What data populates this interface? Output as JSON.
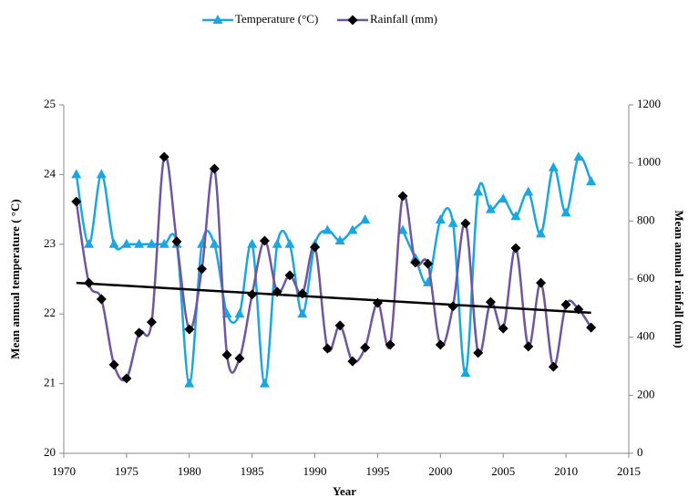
{
  "chart_data": {
    "type": "line",
    "x": [
      1971,
      1972,
      1973,
      1974,
      1975,
      1976,
      1977,
      1978,
      1979,
      1980,
      1981,
      1982,
      1983,
      1984,
      1985,
      1986,
      1987,
      1988,
      1989,
      1990,
      1991,
      1992,
      1993,
      1994,
      1995,
      1996,
      1997,
      1998,
      1999,
      2000,
      2001,
      2002,
      2003,
      2004,
      2005,
      2006,
      2007,
      2008,
      2009,
      2010,
      2011,
      2012
    ],
    "series": [
      {
        "name": "Temperature (°C)",
        "color": "#1aa7e0",
        "marker": "triangle",
        "marker_color": "#1aa7e0",
        "values": [
          24.0,
          23.0,
          24.0,
          23.0,
          23.0,
          23.0,
          23.0,
          23.0,
          23.0,
          21.0,
          23.0,
          23.0,
          22.0,
          22.0,
          23.0,
          21.0,
          23.0,
          23.0,
          22.0,
          23.0,
          23.2,
          23.05,
          23.2,
          23.35,
          null,
          null,
          23.2,
          22.8,
          22.45,
          23.35,
          23.3,
          21.15,
          23.75,
          23.5,
          23.65,
          23.4,
          23.75,
          23.15,
          24.1,
          23.45,
          24.25,
          23.9
        ]
      },
      {
        "name": "Rainfall (mm)",
        "color": "#6f56a0",
        "marker": "diamond",
        "marker_color": "#000000",
        "axis": "y2",
        "values": [
          867,
          587,
          531,
          305,
          258,
          415,
          452,
          1021,
          729,
          427,
          635,
          980,
          339,
          327,
          547,
          732,
          556,
          613,
          550,
          710,
          361,
          440,
          317,
          364,
          518,
          374,
          886,
          657,
          653,
          374,
          506,
          792,
          346,
          521,
          430,
          707,
          368,
          587,
          298,
          512,
          496,
          433
        ]
      }
    ],
    "trend": {
      "x": [
        1971,
        2012
      ],
      "values": [
        587,
        484
      ],
      "axis": "y2",
      "color": "#000000"
    },
    "xlabel": "Year",
    "ylabel": "Mean annual temperature ( °C)",
    "y2label": "Mean annual rainfall (mm)",
    "xlim": [
      1970,
      2015
    ],
    "xticks": [
      1970,
      1975,
      1980,
      1985,
      1990,
      1995,
      2000,
      2005,
      2010,
      2015
    ],
    "ylim": [
      20,
      25
    ],
    "yticks": [
      20,
      21,
      22,
      23,
      24,
      25
    ],
    "y2lim": [
      0,
      1200
    ],
    "y2ticks": [
      0,
      200,
      400,
      600,
      800,
      1000,
      1200
    ],
    "grid": false,
    "legend": "top",
    "smooth": true
  }
}
